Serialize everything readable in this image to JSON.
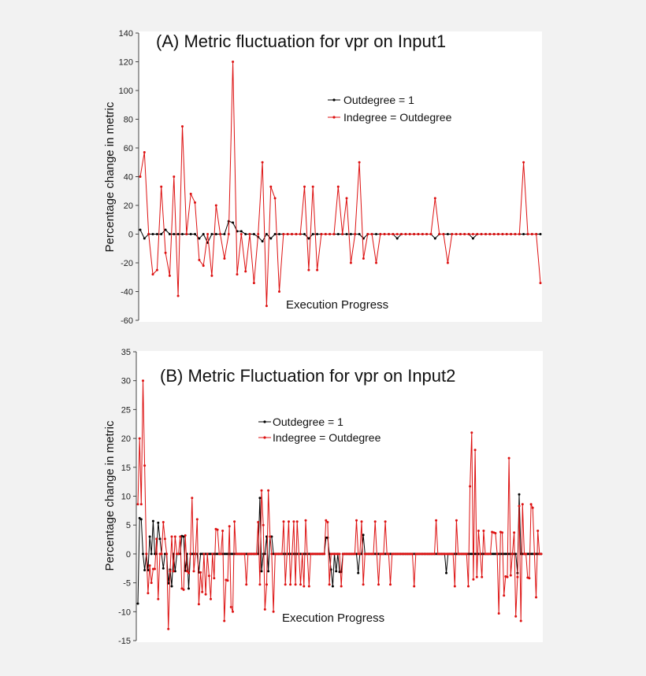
{
  "chart_data": [
    {
      "type": "line",
      "title": "(A) Metric fluctuation for vpr on Input1",
      "xlabel": "Execution Progress",
      "ylabel": "Percentage change in metric",
      "ylim": [
        -60,
        140
      ],
      "yticks": [
        "-60",
        "-40",
        "-20",
        "0",
        "20",
        "40",
        "60",
        "80",
        "100",
        "120",
        "140"
      ],
      "grid": false,
      "legend": "top-center",
      "series": [
        {
          "name": "Outdegree = 1",
          "color": "#000000",
          "values": [
            3,
            -3,
            0,
            0,
            0,
            0,
            3,
            0,
            0,
            0,
            0,
            0,
            0,
            0,
            -3,
            0,
            -6,
            0,
            0,
            0,
            0,
            9,
            8,
            2,
            2,
            0,
            0,
            0,
            -2,
            -5,
            0,
            -3,
            0,
            0,
            0,
            0,
            0,
            0,
            0,
            0,
            -3,
            0,
            0,
            0,
            0,
            0,
            0,
            0,
            0,
            0,
            0,
            0,
            0,
            -3,
            0,
            0,
            0,
            0,
            0,
            0,
            0,
            -3,
            0,
            0,
            0,
            0,
            0,
            0,
            0,
            0,
            -3,
            0,
            0,
            0,
            0,
            0,
            0,
            0,
            0,
            -3,
            0,
            0,
            0,
            0,
            0,
            0,
            0,
            0,
            0,
            0,
            0,
            0,
            0,
            0,
            0,
            0
          ]
        },
        {
          "name": "Indegree = Outdegree",
          "color": "#dd1111",
          "values": [
            40,
            57,
            0,
            -28,
            -25,
            33,
            -13,
            -29,
            40,
            -43,
            75,
            0,
            28,
            22,
            -18,
            -22,
            0,
            -29,
            20,
            0,
            -17,
            0,
            120,
            -28,
            0,
            -26,
            0,
            -34,
            0,
            50,
            -50,
            33,
            25,
            -40,
            0,
            0,
            0,
            0,
            0,
            33,
            -25,
            33,
            -25,
            0,
            0,
            0,
            0,
            33,
            0,
            25,
            -20,
            0,
            50,
            -17,
            0,
            0,
            -20,
            0,
            0,
            0,
            0,
            0,
            0,
            0,
            0,
            0,
            0,
            0,
            0,
            0,
            25,
            0,
            0,
            -20,
            0,
            0,
            0,
            0,
            0,
            0,
            0,
            0,
            0,
            0,
            0,
            0,
            0,
            0,
            0,
            0,
            0,
            50,
            0,
            0,
            0,
            -34
          ]
        }
      ]
    },
    {
      "type": "line",
      "title": "(B) Metric Fluctuation for vpr on Input2",
      "xlabel": "Execution Progress",
      "ylabel": "Percentage change in metric",
      "ylim": [
        -15,
        35
      ],
      "yticks": [
        "-15",
        "-10",
        "-5",
        "0",
        "5",
        "10",
        "15",
        "20",
        "25",
        "30",
        "35"
      ],
      "grid": false,
      "legend": "top-center",
      "series": [
        {
          "name": "Outdegree = 1",
          "color": "#000000",
          "values": [
            -8.6,
            6.2,
            6,
            0,
            -2.8,
            0,
            -2.8,
            3,
            0,
            5.7,
            0,
            0,
            5.4,
            2.6,
            0,
            -2.5,
            0,
            0,
            -5.1,
            -2.7,
            -5.6,
            0,
            -3,
            0,
            0,
            0,
            3.1,
            3,
            -2.9,
            0,
            -6,
            0,
            0,
            0,
            0,
            0,
            -3.2,
            0,
            0,
            0,
            0,
            0,
            0,
            0,
            0,
            0,
            0,
            0,
            0,
            0,
            0,
            0,
            0,
            0,
            0,
            0,
            0,
            0,
            0,
            0,
            0,
            0,
            0,
            0,
            0,
            0,
            0,
            0,
            0,
            0,
            0,
            0,
            9.7,
            -3,
            0,
            0,
            3,
            -3,
            3,
            3,
            0,
            0,
            0,
            0,
            0,
            0,
            0,
            0,
            0,
            0,
            0,
            0,
            0,
            0,
            0,
            0,
            0,
            0,
            0,
            0,
            0,
            0,
            0,
            0,
            0,
            0,
            0,
            0,
            0,
            0,
            0,
            2.8,
            2.8,
            0,
            -2.7,
            -5.6,
            0,
            -3,
            0,
            -3.1,
            -3.1,
            0,
            0,
            0,
            0,
            0,
            0,
            0,
            0,
            0,
            -3.3,
            0,
            0,
            3.3,
            0,
            0,
            0,
            0,
            0,
            0,
            0,
            0,
            0,
            0,
            0,
            0,
            0,
            0,
            0,
            0,
            0,
            0,
            0,
            0,
            0,
            0,
            0,
            0,
            0,
            0,
            0,
            0,
            0,
            0,
            0,
            0,
            0,
            0,
            0,
            0,
            0,
            0,
            0,
            0,
            0,
            0,
            0,
            0,
            0,
            0,
            0,
            0,
            -3.3,
            0,
            0,
            0,
            0,
            0,
            0,
            0,
            0,
            0,
            0,
            0,
            0,
            0,
            0,
            0,
            0,
            0,
            0,
            0,
            0,
            0,
            0,
            0,
            0,
            0,
            0,
            0,
            0,
            0,
            0,
            0,
            0,
            0,
            0,
            0,
            0,
            0,
            0,
            0,
            0,
            0,
            -3.3,
            10.3,
            0,
            0,
            0,
            0,
            0,
            0,
            0,
            0,
            0,
            0,
            0,
            0,
            0
          ]
        },
        {
          "name": "Indegree = Outdegree",
          "color": "#dd1111",
          "values": [
            8.6,
            20,
            8.6,
            30,
            15.3,
            0,
            -6.8,
            -2,
            -5,
            -2.6,
            -2.6,
            2.6,
            -7.8,
            0,
            0,
            5.5,
            2.6,
            0,
            -13,
            -3,
            3,
            -3,
            3,
            0,
            0,
            3,
            -6,
            -6.2,
            3.2,
            -3,
            -3.3,
            0,
            9.7,
            -3,
            0,
            6,
            -8.7,
            -3.2,
            -6.6,
            0,
            -7,
            0,
            -3.8,
            -7.8,
            0,
            -4.2,
            4.3,
            4.2,
            0,
            0,
            4,
            -11.6,
            -4.5,
            -4.6,
            4.8,
            -9.2,
            -10,
            5.6,
            0,
            0,
            0,
            0,
            0,
            0,
            -5.3,
            0,
            0,
            0,
            0,
            0,
            0,
            5.5,
            -5.3,
            11,
            5,
            -9.6,
            -5.3,
            11,
            3,
            0,
            -10,
            0,
            0,
            0,
            0,
            0,
            5.6,
            -5.3,
            0,
            5.6,
            -5.3,
            0,
            5.6,
            -5.3,
            5.6,
            0,
            -5.3,
            0,
            -5.6,
            5.8,
            0,
            -5.6,
            0,
            0,
            0,
            0,
            0,
            0,
            0,
            0,
            0,
            5.8,
            5.5,
            -5.3,
            0,
            0,
            0,
            0,
            0,
            0,
            -5.6,
            0,
            0,
            0,
            0,
            0,
            0,
            0,
            0,
            5.8,
            0,
            0,
            5.6,
            -5.3,
            0,
            0,
            0,
            0,
            0,
            0,
            5.6,
            0,
            -5.3,
            0,
            0,
            0,
            5.6,
            0,
            0,
            -5.3,
            0,
            0,
            0,
            0,
            0,
            0,
            0,
            0,
            0,
            0,
            0,
            0,
            0,
            -5.6,
            0,
            0,
            0,
            0,
            0,
            0,
            0,
            0,
            0,
            0,
            0,
            0,
            5.8,
            0,
            0,
            0,
            0,
            0,
            0,
            0,
            0,
            0,
            0,
            -5.6,
            5.8,
            0,
            0,
            0,
            0,
            0,
            0,
            -5.6,
            11.7,
            21,
            -4.4,
            18,
            -4,
            4,
            0,
            -4,
            4,
            0,
            0,
            0,
            0,
            3.8,
            3.7,
            3.6,
            0,
            -10.3,
            3.8,
            3.7,
            -7.2,
            -3.9,
            -4,
            16.6,
            -3.7,
            0,
            3.7,
            -10.8,
            -4,
            8.3,
            -11.6,
            8.6,
            0,
            0,
            -4.1,
            -4.2,
            8.6,
            8,
            0,
            -7.5,
            4,
            0,
            0
          ]
        }
      ]
    }
  ]
}
